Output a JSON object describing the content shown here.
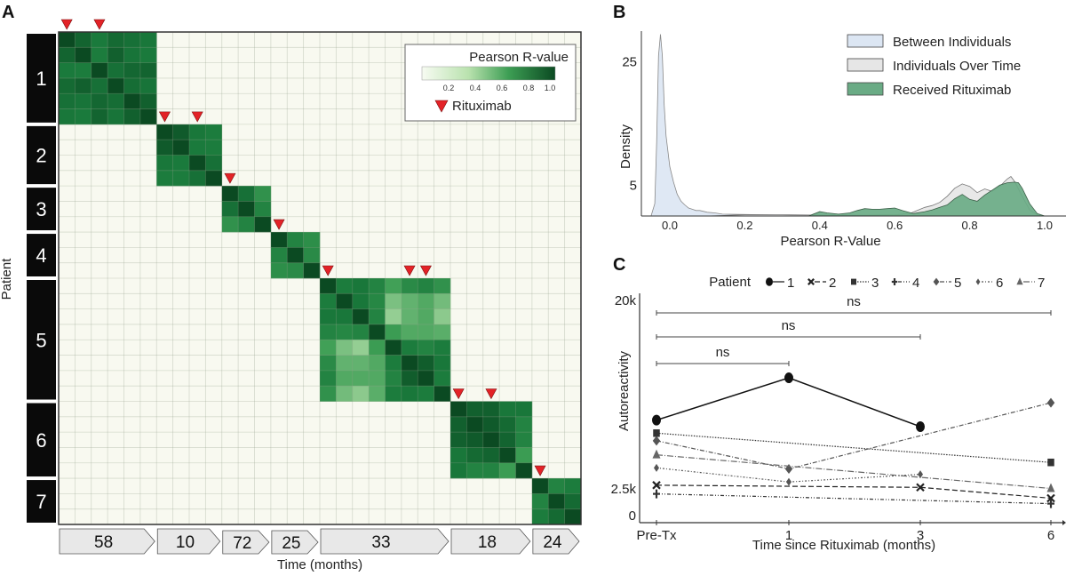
{
  "figure": {
    "panel_labels": [
      "A",
      "B",
      "C"
    ]
  },
  "chart_data": [
    {
      "panel": "A",
      "type": "heatmap",
      "title": "",
      "xlabel": "Time (months)",
      "ylabel": "Patient",
      "colorbar": {
        "title": "Pearson R-value",
        "range": [
          0.0,
          1.0
        ],
        "ticks": [
          "0.2",
          "0.4",
          "0.6",
          "0.8",
          "1.0"
        ],
        "color_low": "#f7fbf2",
        "color_high": "#0b4a22"
      },
      "marker_legend": "Rituximab",
      "marker_color": "#e32227",
      "background_value_color": "#f8f9f0",
      "patients": [
        {
          "label": "1",
          "samples": 6,
          "duration_months": "58",
          "rituximab_at": [
            0,
            2
          ]
        },
        {
          "label": "2",
          "samples": 4,
          "duration_months": "10",
          "rituximab_at": [
            0,
            2
          ]
        },
        {
          "label": "3",
          "samples": 3,
          "duration_months": "72",
          "rituximab_at": [
            0
          ]
        },
        {
          "label": "4",
          "samples": 3,
          "duration_months": "25",
          "rituximab_at": [
            0
          ]
        },
        {
          "label": "5",
          "samples": 8,
          "duration_months": "33",
          "rituximab_at": [
            0,
            5,
            6
          ]
        },
        {
          "label": "6",
          "samples": 5,
          "duration_months": "18",
          "rituximab_at": [
            0,
            2
          ]
        },
        {
          "label": "7",
          "samples": 3,
          "duration_months": "24",
          "rituximab_at": [
            0
          ]
        }
      ],
      "blocks": [
        [
          [
            1.0,
            0.92,
            0.85,
            0.9,
            0.88,
            0.86
          ],
          [
            0.92,
            1.0,
            0.84,
            0.93,
            0.87,
            0.85
          ],
          [
            0.85,
            0.84,
            1.0,
            0.88,
            0.91,
            0.92
          ],
          [
            0.9,
            0.93,
            0.88,
            1.0,
            0.89,
            0.87
          ],
          [
            0.88,
            0.87,
            0.91,
            0.89,
            1.0,
            0.93
          ],
          [
            0.86,
            0.85,
            0.92,
            0.87,
            0.93,
            1.0
          ]
        ],
        [
          [
            1.0,
            0.95,
            0.86,
            0.84
          ],
          [
            0.95,
            1.0,
            0.85,
            0.84
          ],
          [
            0.86,
            0.85,
            1.0,
            0.88
          ],
          [
            0.84,
            0.84,
            0.88,
            1.0
          ]
        ],
        [
          [
            1.0,
            0.88,
            0.72
          ],
          [
            0.88,
            1.0,
            0.8
          ],
          [
            0.72,
            0.8,
            1.0
          ]
        ],
        [
          [
            1.0,
            0.8,
            0.74
          ],
          [
            0.8,
            1.0,
            0.76
          ],
          [
            0.74,
            0.76,
            1.0
          ]
        ],
        [
          [
            1.0,
            0.84,
            0.86,
            0.8,
            0.64,
            0.76,
            0.8,
            0.72
          ],
          [
            0.84,
            1.0,
            0.86,
            0.78,
            0.5,
            0.56,
            0.6,
            0.52
          ],
          [
            0.86,
            0.86,
            1.0,
            0.8,
            0.44,
            0.56,
            0.6,
            0.46
          ],
          [
            0.8,
            0.78,
            0.8,
            1.0,
            0.66,
            0.6,
            0.6,
            0.58
          ],
          [
            0.64,
            0.5,
            0.44,
            0.66,
            1.0,
            0.84,
            0.8,
            0.84
          ],
          [
            0.76,
            0.56,
            0.56,
            0.6,
            0.84,
            1.0,
            0.94,
            0.86
          ],
          [
            0.8,
            0.6,
            0.6,
            0.6,
            0.8,
            0.94,
            1.0,
            0.84
          ],
          [
            0.72,
            0.52,
            0.46,
            0.58,
            0.84,
            0.86,
            0.84,
            1.0
          ]
        ],
        [
          [
            1.0,
            0.93,
            0.93,
            0.86,
            0.86
          ],
          [
            0.93,
            1.0,
            0.95,
            0.9,
            0.8
          ],
          [
            0.93,
            0.95,
            1.0,
            0.92,
            0.8
          ],
          [
            0.86,
            0.9,
            0.92,
            1.0,
            0.66
          ],
          [
            0.86,
            0.8,
            0.8,
            0.66,
            1.0
          ]
        ],
        [
          [
            1.0,
            0.8,
            0.84
          ],
          [
            0.8,
            1.0,
            0.9
          ],
          [
            0.84,
            0.9,
            1.0
          ]
        ]
      ],
      "off_block_value": 0.02
    },
    {
      "panel": "B",
      "type": "area",
      "title": "",
      "xlabel": "Pearson R-Value",
      "ylabel": "Density",
      "xlim": [
        -0.07,
        1.07
      ],
      "ylim": [
        0,
        30
      ],
      "xticks": [
        "0.0",
        "0.2",
        "0.4",
        "0.6",
        "0.8",
        "1.0"
      ],
      "yticks": [
        "5",
        "25"
      ],
      "legend_position": "top-right",
      "series": [
        {
          "name": "Between Individuals",
          "fill": "#dce6f3",
          "stroke": "#888888",
          "x": [
            -0.07,
            -0.05,
            -0.04,
            -0.035,
            -0.03,
            -0.025,
            -0.02,
            -0.015,
            -0.01,
            0.0,
            0.01,
            0.02,
            0.03,
            0.04,
            0.05,
            0.06,
            0.07,
            0.08,
            0.1,
            0.12,
            0.14,
            0.2,
            0.3,
            0.4,
            0.5
          ],
          "y": [
            0,
            0,
            2,
            12,
            26,
            29.5,
            26,
            18,
            13,
            8,
            5.5,
            3.5,
            2.4,
            1.8,
            1.3,
            1.1,
            0.9,
            0.9,
            0.6,
            0.5,
            0.3,
            0.25,
            0.15,
            0.05,
            0
          ]
        },
        {
          "name": "Individuals Over Time",
          "fill": "#e6e6e6",
          "stroke": "#777777",
          "x": [
            0.1,
            0.2,
            0.3,
            0.4,
            0.5,
            0.6,
            0.64,
            0.66,
            0.68,
            0.7,
            0.72,
            0.74,
            0.76,
            0.78,
            0.8,
            0.82,
            0.84,
            0.86,
            0.88,
            0.9,
            0.91,
            0.92,
            0.94,
            0.96,
            0.98,
            1.0
          ],
          "y": [
            0,
            0.2,
            0.2,
            0.15,
            0.1,
            0.2,
            0.4,
            0.9,
            1.4,
            1.7,
            2.2,
            3.2,
            4.5,
            5.2,
            4.8,
            3.8,
            4.4,
            4.0,
            4.8,
            6.0,
            6.4,
            5.6,
            3.2,
            1.0,
            0.2,
            0
          ]
        },
        {
          "name": "Received Rituximab",
          "fill": "#6aab85",
          "stroke": "#3c5f48",
          "x": [
            0.37,
            0.4,
            0.42,
            0.45,
            0.48,
            0.5,
            0.52,
            0.54,
            0.56,
            0.58,
            0.6,
            0.62,
            0.65,
            0.68,
            0.7,
            0.72,
            0.74,
            0.76,
            0.78,
            0.8,
            0.82,
            0.84,
            0.86,
            0.88,
            0.9,
            0.92,
            0.93,
            0.94,
            0.96,
            0.98,
            1.0
          ],
          "y": [
            0,
            0.7,
            0.5,
            0.3,
            0.5,
            0.9,
            1.2,
            1.1,
            1.1,
            1.2,
            1.3,
            0.9,
            0.4,
            0.7,
            1.0,
            1.4,
            1.8,
            2.8,
            3.5,
            2.7,
            2.4,
            3.4,
            4.2,
            5.0,
            5.4,
            5.5,
            5.4,
            4.5,
            2.0,
            0.4,
            0
          ]
        }
      ]
    },
    {
      "panel": "C",
      "type": "line",
      "title": "",
      "xlabel": "Time since Rituximab (months)",
      "ylabel": "Autoreactivity",
      "categories": [
        "Pre-Tx",
        "1",
        "3",
        "6"
      ],
      "yticks": [
        "0",
        "2.5k",
        "20k"
      ],
      "ylim": [
        0,
        20000
      ],
      "legend_title": "Patient",
      "legend_position": "top",
      "significance": [
        {
          "from": "Pre-Tx",
          "to": "1",
          "label": "ns"
        },
        {
          "from": "Pre-Tx",
          "to": "3",
          "label": "ns"
        },
        {
          "from": "Pre-Tx",
          "to": "6",
          "label": "ns"
        }
      ],
      "series": [
        {
          "name": "1",
          "marker": "circle",
          "dash": "solid",
          "color": "#111111",
          "values": [
            8800,
            12700,
            8200,
            null
          ]
        },
        {
          "name": "2",
          "marker": "x",
          "dash": "dashed",
          "color": "#222222",
          "values": [
            2800,
            null,
            2600,
            1600
          ]
        },
        {
          "name": "3",
          "marker": "square",
          "dash": "dotted",
          "color": "#333333",
          "values": [
            7600,
            null,
            null,
            4900
          ]
        },
        {
          "name": "4",
          "marker": "plus",
          "dash": "dashdotdot",
          "color": "#333333",
          "values": [
            2000,
            null,
            null,
            1100
          ]
        },
        {
          "name": "5",
          "marker": "diamond",
          "dash": "dashdot",
          "color": "#555555",
          "values": [
            6900,
            4300,
            null,
            10400
          ]
        },
        {
          "name": "6",
          "marker": "small-diamond",
          "dash": "dotdash",
          "color": "#555555",
          "values": [
            4400,
            3100,
            3800,
            null
          ]
        },
        {
          "name": "7",
          "marker": "triangle",
          "dash": "longdashdot",
          "color": "#666666",
          "values": [
            5600,
            null,
            null,
            2500
          ]
        }
      ]
    }
  ]
}
